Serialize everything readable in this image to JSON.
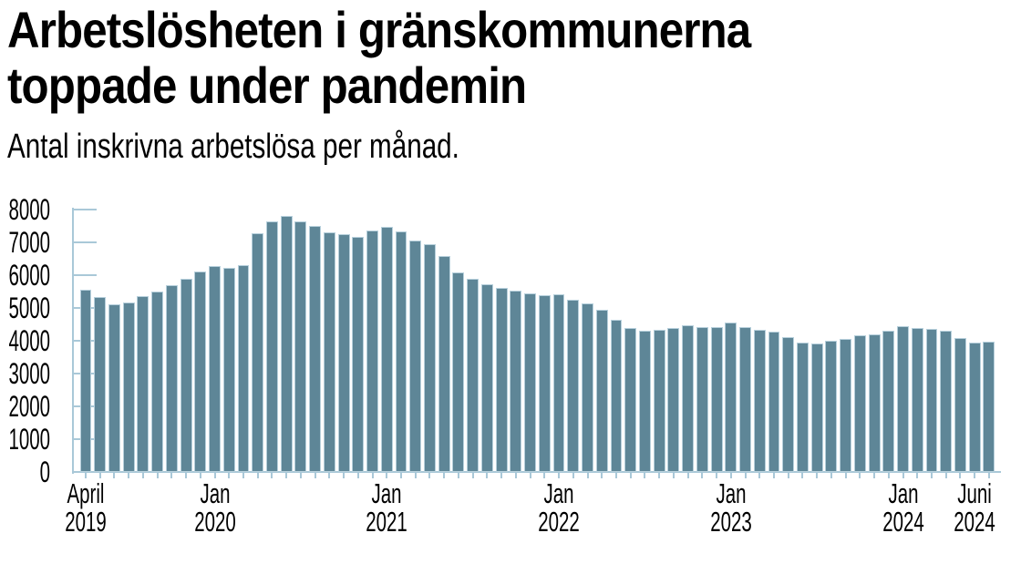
{
  "header": {
    "title_line1": "Arbetslösheten i gränskommunerna",
    "title_line2": "toppade under pandemin",
    "subtitle": "Antal inskrivna arbetslösa per månad."
  },
  "chart_data": {
    "type": "bar",
    "title": "Arbetslösheten i gränskommunerna toppade under pandemin",
    "subtitle": "Antal inskrivna arbetslösa per månad.",
    "xlabel": "",
    "ylabel": "",
    "ylim": [
      0,
      8000
    ],
    "yticks": [
      0,
      1000,
      2000,
      3000,
      4000,
      5000,
      6000,
      7000,
      8000
    ],
    "grid": "tick-stubs-on-y-axis",
    "legend": "none",
    "bar_color": "#5e8697",
    "bar_edge_color": "#b7d0dc",
    "axis_color": "#a9c8d8",
    "categories": [
      "2019-04",
      "2019-05",
      "2019-06",
      "2019-07",
      "2019-08",
      "2019-09",
      "2019-10",
      "2019-11",
      "2019-12",
      "2020-01",
      "2020-02",
      "2020-03",
      "2020-04",
      "2020-05",
      "2020-06",
      "2020-07",
      "2020-08",
      "2020-09",
      "2020-10",
      "2020-11",
      "2020-12",
      "2021-01",
      "2021-02",
      "2021-03",
      "2021-04",
      "2021-05",
      "2021-06",
      "2021-07",
      "2021-08",
      "2021-09",
      "2021-10",
      "2021-11",
      "2021-12",
      "2022-01",
      "2022-02",
      "2022-03",
      "2022-04",
      "2022-05",
      "2022-06",
      "2022-07",
      "2022-08",
      "2022-09",
      "2022-10",
      "2022-11",
      "2022-12",
      "2023-01",
      "2023-02",
      "2023-03",
      "2023-04",
      "2023-05",
      "2023-06",
      "2023-07",
      "2023-08",
      "2023-09",
      "2023-10",
      "2023-11",
      "2023-12",
      "2024-01",
      "2024-02",
      "2024-03",
      "2024-04",
      "2024-05",
      "2024-06",
      "2024-07"
    ],
    "values": [
      5550,
      5330,
      5100,
      5160,
      5350,
      5500,
      5690,
      5890,
      6100,
      6280,
      6210,
      6310,
      7290,
      7630,
      7810,
      7650,
      7510,
      7310,
      7260,
      7180,
      7350,
      7460,
      7330,
      7060,
      6940,
      6590,
      6090,
      5890,
      5720,
      5610,
      5520,
      5440,
      5380,
      5430,
      5240,
      5150,
      4940,
      4630,
      4390,
      4300,
      4330,
      4390,
      4460,
      4420,
      4430,
      4560,
      4430,
      4330,
      4270,
      4110,
      3940,
      3920,
      3990,
      4060,
      4180,
      4200,
      4310,
      4440,
      4390,
      4360,
      4310,
      4080,
      3940,
      3970
    ],
    "x_axis_labels": [
      {
        "index": 0,
        "month": "April",
        "year": "2019"
      },
      {
        "index": 9,
        "month": "Jan",
        "year": "2020"
      },
      {
        "index": 21,
        "month": "Jan",
        "year": "2021"
      },
      {
        "index": 33,
        "month": "Jan",
        "year": "2022"
      },
      {
        "index": 45,
        "month": "Jan",
        "year": "2023"
      },
      {
        "index": 57,
        "month": "Jan",
        "year": "2024"
      },
      {
        "index": 62,
        "month": "Juni",
        "year": "2024"
      }
    ]
  }
}
